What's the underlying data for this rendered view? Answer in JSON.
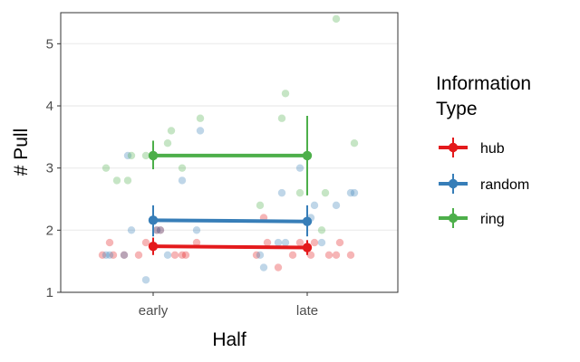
{
  "chart_data": {
    "type": "scatter",
    "xlabel": "Half",
    "ylabel": "# Pull",
    "categories": [
      "early",
      "late"
    ],
    "ylim": [
      1,
      5.5
    ],
    "yticks": [
      1,
      2,
      3,
      4,
      5
    ],
    "grid": true,
    "legend": {
      "title": [
        "Information",
        "Type"
      ],
      "placement": "right"
    },
    "series": [
      {
        "name": "hub",
        "color": "#E41A1C",
        "means": [
          1.74,
          1.72
        ],
        "errors": [
          [
            1.6,
            1.88
          ],
          [
            1.6,
            1.84
          ]
        ],
        "points": [
          {
            "x": "early",
            "y": 1.6
          },
          {
            "x": "early",
            "y": 1.6
          },
          {
            "x": "early",
            "y": 1.6
          },
          {
            "x": "early",
            "y": 1.6
          },
          {
            "x": "early",
            "y": 1.6
          },
          {
            "x": "early",
            "y": 1.6
          },
          {
            "x": "early",
            "y": 2.0
          },
          {
            "x": "early",
            "y": 1.8
          },
          {
            "x": "early",
            "y": 2.0
          },
          {
            "x": "early",
            "y": 1.8
          },
          {
            "x": "early",
            "y": 1.8
          },
          {
            "x": "early",
            "y": 1.6
          },
          {
            "x": "late",
            "y": 1.6
          },
          {
            "x": "late",
            "y": 1.6
          },
          {
            "x": "late",
            "y": 1.6
          },
          {
            "x": "late",
            "y": 1.8
          },
          {
            "x": "late",
            "y": 1.8
          },
          {
            "x": "late",
            "y": 1.4
          },
          {
            "x": "late",
            "y": 1.8
          },
          {
            "x": "late",
            "y": 1.6
          },
          {
            "x": "late",
            "y": 1.6
          },
          {
            "x": "late",
            "y": 2.2
          },
          {
            "x": "late",
            "y": 1.8
          },
          {
            "x": "late",
            "y": 1.6
          }
        ]
      },
      {
        "name": "random",
        "color": "#377EB8",
        "means": [
          2.16,
          2.14
        ],
        "errors": [
          [
            1.9,
            2.4
          ],
          [
            1.9,
            2.4
          ]
        ],
        "points": [
          {
            "x": "early",
            "y": 1.6
          },
          {
            "x": "early",
            "y": 2.0
          },
          {
            "x": "early",
            "y": 2.0
          },
          {
            "x": "early",
            "y": 2.0
          },
          {
            "x": "early",
            "y": 1.6
          },
          {
            "x": "early",
            "y": 1.2
          },
          {
            "x": "early",
            "y": 2.8
          },
          {
            "x": "early",
            "y": 3.2
          },
          {
            "x": "early",
            "y": 3.6
          },
          {
            "x": "early",
            "y": 2.0
          },
          {
            "x": "early",
            "y": 1.6
          },
          {
            "x": "early",
            "y": 1.6
          },
          {
            "x": "late",
            "y": 1.8
          },
          {
            "x": "late",
            "y": 2.4
          },
          {
            "x": "late",
            "y": 2.6
          },
          {
            "x": "late",
            "y": 2.2
          },
          {
            "x": "late",
            "y": 1.4
          },
          {
            "x": "late",
            "y": 3.0
          },
          {
            "x": "late",
            "y": 2.4
          },
          {
            "x": "late",
            "y": 2.6
          },
          {
            "x": "late",
            "y": 2.6
          },
          {
            "x": "late",
            "y": 1.8
          },
          {
            "x": "late",
            "y": 1.8
          },
          {
            "x": "late",
            "y": 1.6
          }
        ]
      },
      {
        "name": "ring",
        "color": "#4DAF4A",
        "means": [
          3.2,
          3.2
        ],
        "errors": [
          [
            2.98,
            3.44
          ],
          [
            2.56,
            3.84
          ]
        ],
        "points": [
          {
            "x": "early",
            "y": 3.2
          },
          {
            "x": "early",
            "y": 3.0
          },
          {
            "x": "early",
            "y": 2.8
          },
          {
            "x": "early",
            "y": 3.8
          },
          {
            "x": "early",
            "y": 3.2
          },
          {
            "x": "early",
            "y": 3.4
          },
          {
            "x": "early",
            "y": 3.0
          },
          {
            "x": "early",
            "y": 3.6
          },
          {
            "x": "early",
            "y": 2.8
          },
          {
            "x": "early",
            "y": 3.2
          },
          {
            "x": "late",
            "y": 2.6
          },
          {
            "x": "late",
            "y": 5.4
          },
          {
            "x": "late",
            "y": 3.8
          },
          {
            "x": "late",
            "y": 3.4
          },
          {
            "x": "late",
            "y": 4.2
          },
          {
            "x": "late",
            "y": 2.0
          },
          {
            "x": "late",
            "y": 2.4
          },
          {
            "x": "late",
            "y": 2.6
          }
        ]
      }
    ]
  }
}
